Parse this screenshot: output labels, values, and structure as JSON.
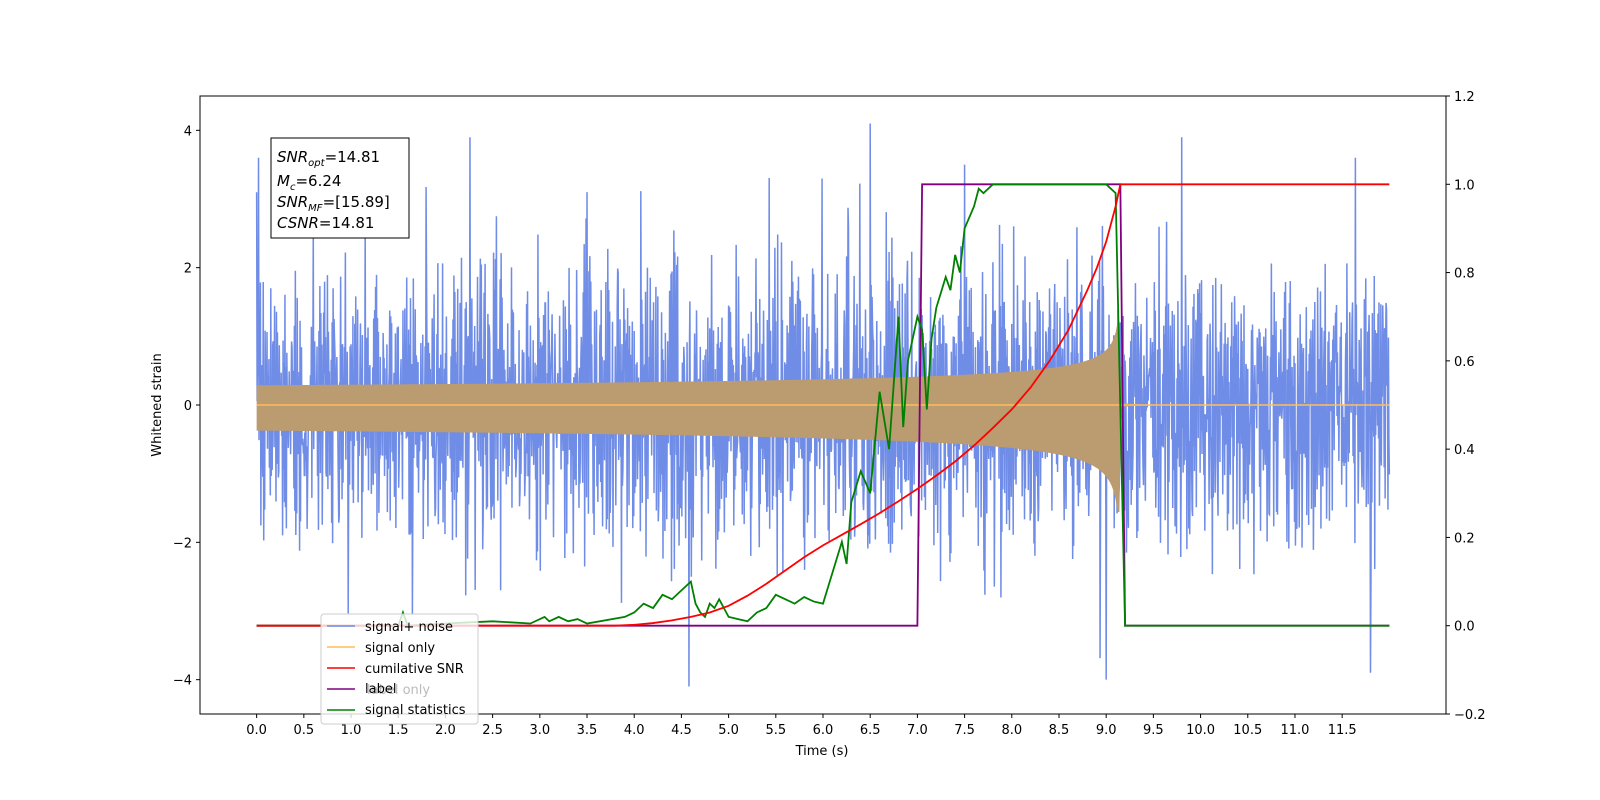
{
  "chart_data": {
    "type": "line",
    "xlabel": "Time (s)",
    "ylabel": "Whitened strain",
    "xlim": [
      -0.6,
      12.6
    ],
    "ylim": [
      -4.5,
      4.5
    ],
    "y2lim": [
      -0.2,
      1.2
    ],
    "x_ticks": [
      "0.0",
      "0.5",
      "1.0",
      "1.5",
      "2.0",
      "2.5",
      "3.0",
      "3.5",
      "4.0",
      "4.5",
      "5.0",
      "5.5",
      "6.0",
      "6.5",
      "7.0",
      "7.5",
      "8.0",
      "8.5",
      "9.0",
      "9.5",
      "10.0",
      "10.5",
      "11.0",
      "11.5"
    ],
    "y_ticks": [
      "4",
      "2",
      "0",
      "−2",
      "−4"
    ],
    "y2_ticks": [
      "1.2",
      "1.0",
      "0.8",
      "0.6",
      "0.4",
      "0.2",
      "0.0",
      "−0.2"
    ],
    "info_box": {
      "snr_opt": {
        "sym": "SNR",
        "sub": "opt",
        "val": "=14.81"
      },
      "mc": {
        "sym": "M",
        "sub": "c",
        "val": "=6.24"
      },
      "snr_mf": {
        "sym": "SNR",
        "sub": "MF",
        "val": "=[15.89]"
      },
      "csnr": {
        "sym": "CSNR",
        "sub": "",
        "val": "=14.81"
      }
    },
    "legend": {
      "placement": "lower-left",
      "entries": [
        "signal+ noise",
        "signal only",
        "cumilative SNR",
        "label",
        "signal statistics"
      ],
      "hidden_entry": "label only"
    },
    "colors": {
      "noise": "#6f8ce6",
      "signal": "#ffbe5c",
      "signal_fill": "#bb9b70",
      "cumulative_snr": "#ff0000",
      "label": "#800080",
      "signal_statistics": "#008000"
    },
    "series": [
      {
        "name": "signal+ noise",
        "axis": "left",
        "description_kind": "whitened noise",
        "t_range": [
          0.0,
          12.0
        ],
        "sigma": 1.0,
        "peak_values": [
          [
            0.02,
            3.6
          ],
          [
            0.6,
            2.6
          ],
          [
            1.65,
            -3.05
          ],
          [
            2.26,
            3.9
          ],
          [
            3.5,
            3.1
          ],
          [
            4.58,
            -4.1
          ],
          [
            6.5,
            4.1
          ],
          [
            7.5,
            3.5
          ],
          [
            9.0,
            -4.0
          ],
          [
            9.8,
            3.9
          ],
          [
            11.64,
            3.6
          ],
          [
            11.8,
            -3.9
          ]
        ]
      },
      {
        "name": "signal only",
        "axis": "left",
        "description_kind": "chirp",
        "t_range": [
          0.0,
          12.0
        ],
        "merger_time": 9.15,
        "peak_amplitude": 1.2,
        "post_merger_amplitude": 0.03
      },
      {
        "name": "cumilative SNR",
        "axis": "right",
        "x": [
          0.0,
          3.8,
          4.0,
          4.2,
          4.4,
          4.6,
          4.8,
          5.0,
          5.2,
          5.4,
          5.6,
          5.8,
          6.0,
          6.2,
          6.4,
          6.6,
          6.8,
          7.0,
          7.2,
          7.4,
          7.6,
          7.8,
          8.0,
          8.2,
          8.4,
          8.6,
          8.8,
          8.9,
          9.0,
          9.1,
          9.14,
          9.15,
          12.0
        ],
        "y": [
          0.0,
          0.0,
          0.002,
          0.006,
          0.012,
          0.02,
          0.03,
          0.045,
          0.068,
          0.095,
          0.125,
          0.155,
          0.182,
          0.206,
          0.23,
          0.255,
          0.282,
          0.31,
          0.34,
          0.372,
          0.408,
          0.448,
          0.49,
          0.54,
          0.6,
          0.67,
          0.76,
          0.81,
          0.87,
          0.95,
          0.99,
          1.0,
          1.0
        ]
      },
      {
        "name": "label",
        "axis": "right",
        "x": [
          0.0,
          7.0,
          7.05,
          9.15,
          9.2,
          12.0
        ],
        "y": [
          0.0,
          0.0,
          1.0,
          1.0,
          0.0,
          0.0
        ]
      },
      {
        "name": "signal statistics",
        "axis": "right",
        "x": [
          0.0,
          1.5,
          1.55,
          1.6,
          2.0,
          2.5,
          2.9,
          3.05,
          3.1,
          3.2,
          3.3,
          3.4,
          3.5,
          3.9,
          4.0,
          4.1,
          4.2,
          4.3,
          4.4,
          4.5,
          4.6,
          4.65,
          4.7,
          4.75,
          4.8,
          4.85,
          4.9,
          5.0,
          5.1,
          5.2,
          5.3,
          5.4,
          5.5,
          5.6,
          5.7,
          5.8,
          5.9,
          6.0,
          6.1,
          6.2,
          6.25,
          6.3,
          6.4,
          6.5,
          6.6,
          6.7,
          6.8,
          6.85,
          6.9,
          7.0,
          7.05,
          7.1,
          7.15,
          7.2,
          7.3,
          7.35,
          7.4,
          7.45,
          7.5,
          7.6,
          7.65,
          7.7,
          7.8,
          7.9,
          8.0,
          8.1,
          9.0,
          9.1,
          9.2,
          12.0
        ],
        "y": [
          0.0,
          0.0,
          0.03,
          0.0,
          0.005,
          0.01,
          0.005,
          0.02,
          0.01,
          0.02,
          0.01,
          0.015,
          0.005,
          0.02,
          0.03,
          0.05,
          0.04,
          0.07,
          0.06,
          0.08,
          0.1,
          0.05,
          0.03,
          0.02,
          0.05,
          0.04,
          0.06,
          0.02,
          0.015,
          0.01,
          0.03,
          0.04,
          0.07,
          0.06,
          0.05,
          0.065,
          0.055,
          0.05,
          0.12,
          0.19,
          0.14,
          0.28,
          0.35,
          0.3,
          0.53,
          0.4,
          0.7,
          0.45,
          0.6,
          0.7,
          0.67,
          0.49,
          0.65,
          0.72,
          0.79,
          0.76,
          0.84,
          0.8,
          0.9,
          0.95,
          0.99,
          0.98,
          1.0,
          1.0,
          1.0,
          1.0,
          1.0,
          0.98,
          0.0,
          0.0
        ]
      }
    ]
  }
}
